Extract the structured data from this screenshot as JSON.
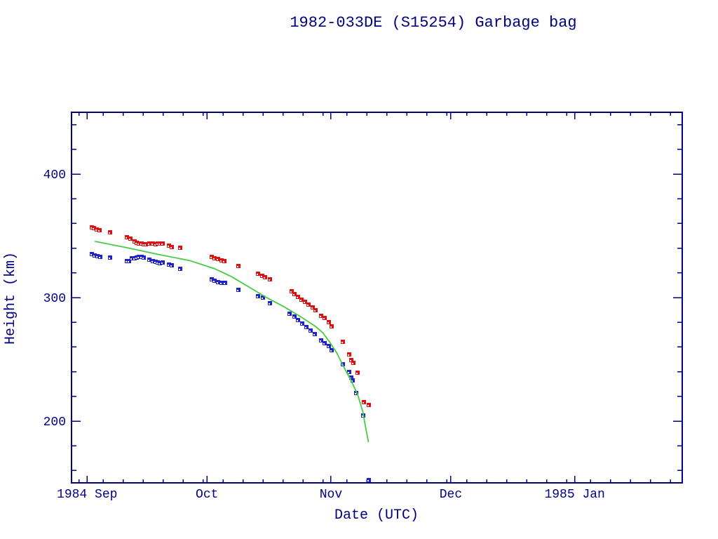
{
  "title": "1982-033DE (S15254) Garbage bag",
  "colors": {
    "frame": "#000080",
    "text": "#000080",
    "background": "#ffffff",
    "red_series": "#dd1111",
    "blue_series": "#2222cc",
    "green_line": "#44cc44",
    "marker_notch": "#ffffff"
  },
  "chart_data": {
    "type": "scatter",
    "title": "1982-033DE (S15254) Garbage bag",
    "xlabel": "Date (UTC)",
    "ylabel": "Height (km)",
    "x_unit": "days since 1984 Sep 1",
    "xlim": [
      -3.9,
      148.9
    ],
    "ylim": [
      150,
      450
    ],
    "grid": false,
    "legend": "none",
    "y_major_ticks": [
      {
        "value": 200,
        "label": "200"
      },
      {
        "value": 300,
        "label": "300"
      },
      {
        "value": 400,
        "label": "400"
      }
    ],
    "y_minor_ticks": [
      160,
      180,
      220,
      240,
      260,
      280,
      320,
      340,
      360,
      380,
      420,
      440
    ],
    "x_major_ticks": [
      {
        "day": 0,
        "label": "1984 Sep"
      },
      {
        "day": 30,
        "label": "Oct"
      },
      {
        "day": 61,
        "label": "Nov"
      },
      {
        "day": 91,
        "label": "Dec"
      },
      {
        "day": 122,
        "label": "1985 Jan"
      }
    ],
    "x_minor_ticks": [
      -2,
      4,
      9,
      14,
      19,
      24,
      29,
      34,
      39,
      44,
      49,
      54,
      59,
      65,
      70,
      75,
      80,
      85,
      90,
      95,
      100,
      105,
      110,
      115,
      120,
      126,
      131,
      136,
      141,
      146
    ],
    "series": [
      {
        "id": "red-squares",
        "marker": "square",
        "color": "#dd1111",
        "points": [
          [
            1.2,
            357
          ],
          [
            1.8,
            356
          ],
          [
            2.5,
            355
          ],
          [
            3.2,
            354.5
          ],
          [
            5.8,
            353
          ],
          [
            10,
            349
          ],
          [
            10.9,
            348
          ],
          [
            11.9,
            345.5
          ],
          [
            12.5,
            344.5
          ],
          [
            13,
            343.5
          ],
          [
            13.7,
            343.5
          ],
          [
            14.2,
            343
          ],
          [
            14.7,
            343
          ],
          [
            15.6,
            343.5
          ],
          [
            16.5,
            343.5
          ],
          [
            17.2,
            343
          ],
          [
            17.7,
            343.5
          ],
          [
            18.2,
            343.5
          ],
          [
            18.9,
            343.5
          ],
          [
            20.4,
            342
          ],
          [
            21.2,
            341
          ],
          [
            23.3,
            340.5
          ],
          [
            31.1,
            333
          ],
          [
            31.9,
            332
          ],
          [
            32.8,
            331
          ],
          [
            33.7,
            330
          ],
          [
            34.4,
            329.5
          ],
          [
            37.9,
            325.5
          ],
          [
            42.8,
            319.5
          ],
          [
            43.9,
            317.5
          ],
          [
            44.6,
            316.5
          ],
          [
            45.8,
            315
          ],
          [
            51.1,
            305
          ],
          [
            51.9,
            303
          ],
          [
            52.8,
            300.5
          ],
          [
            53.7,
            298.5
          ],
          [
            54.6,
            296.5
          ],
          [
            55.4,
            294.5
          ],
          [
            56.5,
            292
          ],
          [
            57.2,
            290
          ],
          [
            58.6,
            285
          ],
          [
            59.5,
            283.5
          ],
          [
            60.4,
            280
          ],
          [
            61.2,
            276.5
          ],
          [
            64,
            264
          ],
          [
            65.6,
            254
          ],
          [
            66.1,
            249.5
          ],
          [
            66.7,
            247
          ],
          [
            67.7,
            239
          ],
          [
            69.3,
            215.5
          ],
          [
            70.5,
            213
          ]
        ]
      },
      {
        "id": "blue-squares",
        "marker": "square",
        "color": "#2222cc",
        "points": [
          [
            1.2,
            335
          ],
          [
            1.9,
            334
          ],
          [
            2.6,
            333.5
          ],
          [
            3.3,
            333
          ],
          [
            5.8,
            332.5
          ],
          [
            10,
            329.5
          ],
          [
            10.5,
            329.5
          ],
          [
            11.2,
            332
          ],
          [
            11.9,
            332
          ],
          [
            12.5,
            332.5
          ],
          [
            13,
            333
          ],
          [
            13.7,
            333
          ],
          [
            14.2,
            332.5
          ],
          [
            15.6,
            330.5
          ],
          [
            16.5,
            329.5
          ],
          [
            17.2,
            329
          ],
          [
            17.7,
            328.5
          ],
          [
            18.2,
            328
          ],
          [
            18.9,
            328.5
          ],
          [
            20.4,
            326.5
          ],
          [
            21.2,
            326
          ],
          [
            23.3,
            323.5
          ],
          [
            31.1,
            315
          ],
          [
            31.9,
            313.5
          ],
          [
            32.8,
            312.5
          ],
          [
            33.7,
            312
          ],
          [
            34.6,
            312
          ],
          [
            37.9,
            306.5
          ],
          [
            42.8,
            301
          ],
          [
            44,
            300
          ],
          [
            45.8,
            295.5
          ],
          [
            50.7,
            287
          ],
          [
            51.8,
            284.5
          ],
          [
            52.8,
            282
          ],
          [
            53.9,
            279
          ],
          [
            54.9,
            276
          ],
          [
            56,
            273.5
          ],
          [
            57,
            270.5
          ],
          [
            58.6,
            265.5
          ],
          [
            59.5,
            263
          ],
          [
            60.4,
            261
          ],
          [
            61.2,
            257.5
          ],
          [
            64,
            246
          ],
          [
            65.6,
            240
          ],
          [
            66.1,
            235
          ],
          [
            66.5,
            233
          ],
          [
            67.4,
            223
          ],
          [
            69.1,
            204.5
          ],
          [
            70.5,
            152.5
          ]
        ]
      },
      {
        "id": "green-curve",
        "marker": "none",
        "type": "line",
        "color": "#44cc44",
        "points": [
          [
            1.9,
            345.5
          ],
          [
            9.8,
            340.5
          ],
          [
            17.7,
            335
          ],
          [
            25.6,
            330
          ],
          [
            31.8,
            323.5
          ],
          [
            36.1,
            317
          ],
          [
            40.5,
            308.5
          ],
          [
            44.9,
            300
          ],
          [
            49.3,
            292.5
          ],
          [
            53.7,
            284
          ],
          [
            57.2,
            276.5
          ],
          [
            59,
            271.5
          ],
          [
            60.7,
            264
          ],
          [
            62.5,
            255
          ],
          [
            64.2,
            244
          ],
          [
            66,
            233
          ],
          [
            67.7,
            221.5
          ],
          [
            69,
            207.5
          ],
          [
            69.8,
            193
          ],
          [
            70.4,
            183
          ]
        ]
      }
    ]
  }
}
